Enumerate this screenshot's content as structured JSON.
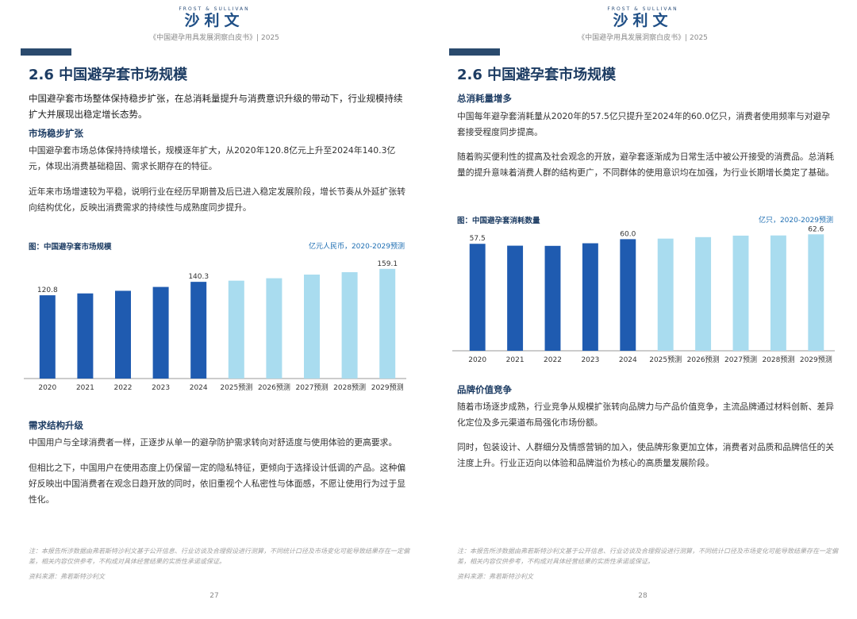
{
  "header": {
    "brand_en": "FROST & SULLIVAN",
    "brand_cn": "沙利文",
    "doc_title": "《中国避孕用具发展洞察白皮书》| 2025"
  },
  "left": {
    "section_title": "2.6 中国避孕套市场规模",
    "lead": "中国避孕套市场整体保持稳步扩张，在总消耗量提升与消费意识升级的带动下，行业规模持续扩大并展现出稳定增长态势。",
    "sub1": "市场稳步扩张",
    "p1": "中国避孕套市场总体保持持续增长，规模逐年扩大，从2020年120.8亿元上升至2024年140.3亿元，体现出消费基础稳固、需求长期存在的特征。",
    "p2": "近年来市场增速较为平稳，说明行业在经历早期普及后已进入稳定发展阶段，增长节奏从外延扩张转向结构优化，反映出消费需求的持续性与成熟度同步提升。",
    "chart_title": "图：中国避孕套市场规模",
    "chart_unit": "亿元人民币，2020-2029预测",
    "sub2": "需求结构升级",
    "p3": "中国用户与全球消费者一样，正逐步从单一的避孕防护需求转向对舒适度与使用体验的更高要求。",
    "p4": "但相比之下，中国用户在使用态度上仍保留一定的隐私特征，更倾向于选择设计低调的产品。这种偏好反映出中国消费者在观念日趋开放的同时，依旧重视个人私密性与体面感，不愿让使用行为过于显性化。",
    "footnote": "注：本报告所涉数据由弗若斯特沙利文基于公开信息、行业访谈及合理假设进行测算，不同统计口径及市场变化可能导致结果存在一定偏差，相关内容仅供参考，不构成对具体经营结果的实质性承诺或保证。",
    "source": "资料来源：弗若斯特沙利文",
    "page_num": "27"
  },
  "right": {
    "section_title": "2.6 中国避孕套市场规模",
    "sub1": "总消耗量增多",
    "p1": "中国每年避孕套消耗量从2020年的57.5亿只提升至2024年的60.0亿只，消费者使用频率与对避孕套接受程度同步提高。",
    "p2": "随着购买便利性的提高及社会观念的开放，避孕套逐渐成为日常生活中被公开接受的消费品。总消耗量的提升意味着消费人群的结构更广，不同群体的使用意识均在加强，为行业长期增长奠定了基础。",
    "chart_title": "图：中国避孕套消耗数量",
    "chart_unit": "亿只，2020-2029预测",
    "sub2": "品牌价值竞争",
    "p3": "随着市场逐步成熟，行业竞争从规模扩张转向品牌力与产品价值竞争，主流品牌通过材料创新、差异化定位及多元渠道布局强化市场份额。",
    "p4": "同时，包装设计、人群细分及情感营销的加入，使品牌形象更加立体，消费者对品质和品牌信任的关注度上升。行业正迈向以体验和品牌溢价为核心的高质量发展阶段。",
    "footnote": "注：本报告所涉数据由弗若斯特沙利文基于公开信息、行业访谈及合理假设进行测算，不同统计口径及市场变化可能导致结果存在一定偏差，相关内容仅供参考，不构成对具体经营结果的实质性承诺或保证。",
    "source": "资料来源：弗若斯特沙利文",
    "page_num": "28"
  },
  "colors": {
    "actual": "#1f5bb0",
    "forecast": "#a9dcef",
    "heading": "#1d3c63",
    "accent_bar": "#2a4a6d"
  },
  "chart_data": [
    {
      "type": "bar",
      "title": "图：中国避孕套市场规模",
      "unit": "亿元人民币，2020-2029预测",
      "categories": [
        "2020",
        "2021",
        "2022",
        "2023",
        "2024",
        "2025预测",
        "2026预测",
        "2027预测",
        "2028预测",
        "2029预测"
      ],
      "values": [
        120.8,
        123.5,
        127.3,
        132.9,
        140.3,
        142.0,
        145.5,
        150.8,
        154.3,
        159.1
      ],
      "forecast_from_index": 5,
      "labeled_indices": [
        0,
        4,
        9
      ],
      "labels": [
        "120.8",
        "140.3",
        "159.1"
      ],
      "ylim": [
        0,
        175
      ]
    },
    {
      "type": "bar",
      "title": "图：中国避孕套消耗数量",
      "unit": "亿只，2020-2029预测",
      "categories": [
        "2020",
        "2021",
        "2022",
        "2023",
        "2024",
        "2025预测",
        "2026预测",
        "2027预测",
        "2028预测",
        "2029预测"
      ],
      "values": [
        57.5,
        56.5,
        56.4,
        57.8,
        60.0,
        60.3,
        61.1,
        61.9,
        62.0,
        62.6
      ],
      "forecast_from_index": 5,
      "labeled_indices": [
        0,
        4,
        9
      ],
      "labels": [
        "57.5",
        "60.0",
        "62.6"
      ],
      "ylim": [
        0,
        64
      ]
    }
  ]
}
